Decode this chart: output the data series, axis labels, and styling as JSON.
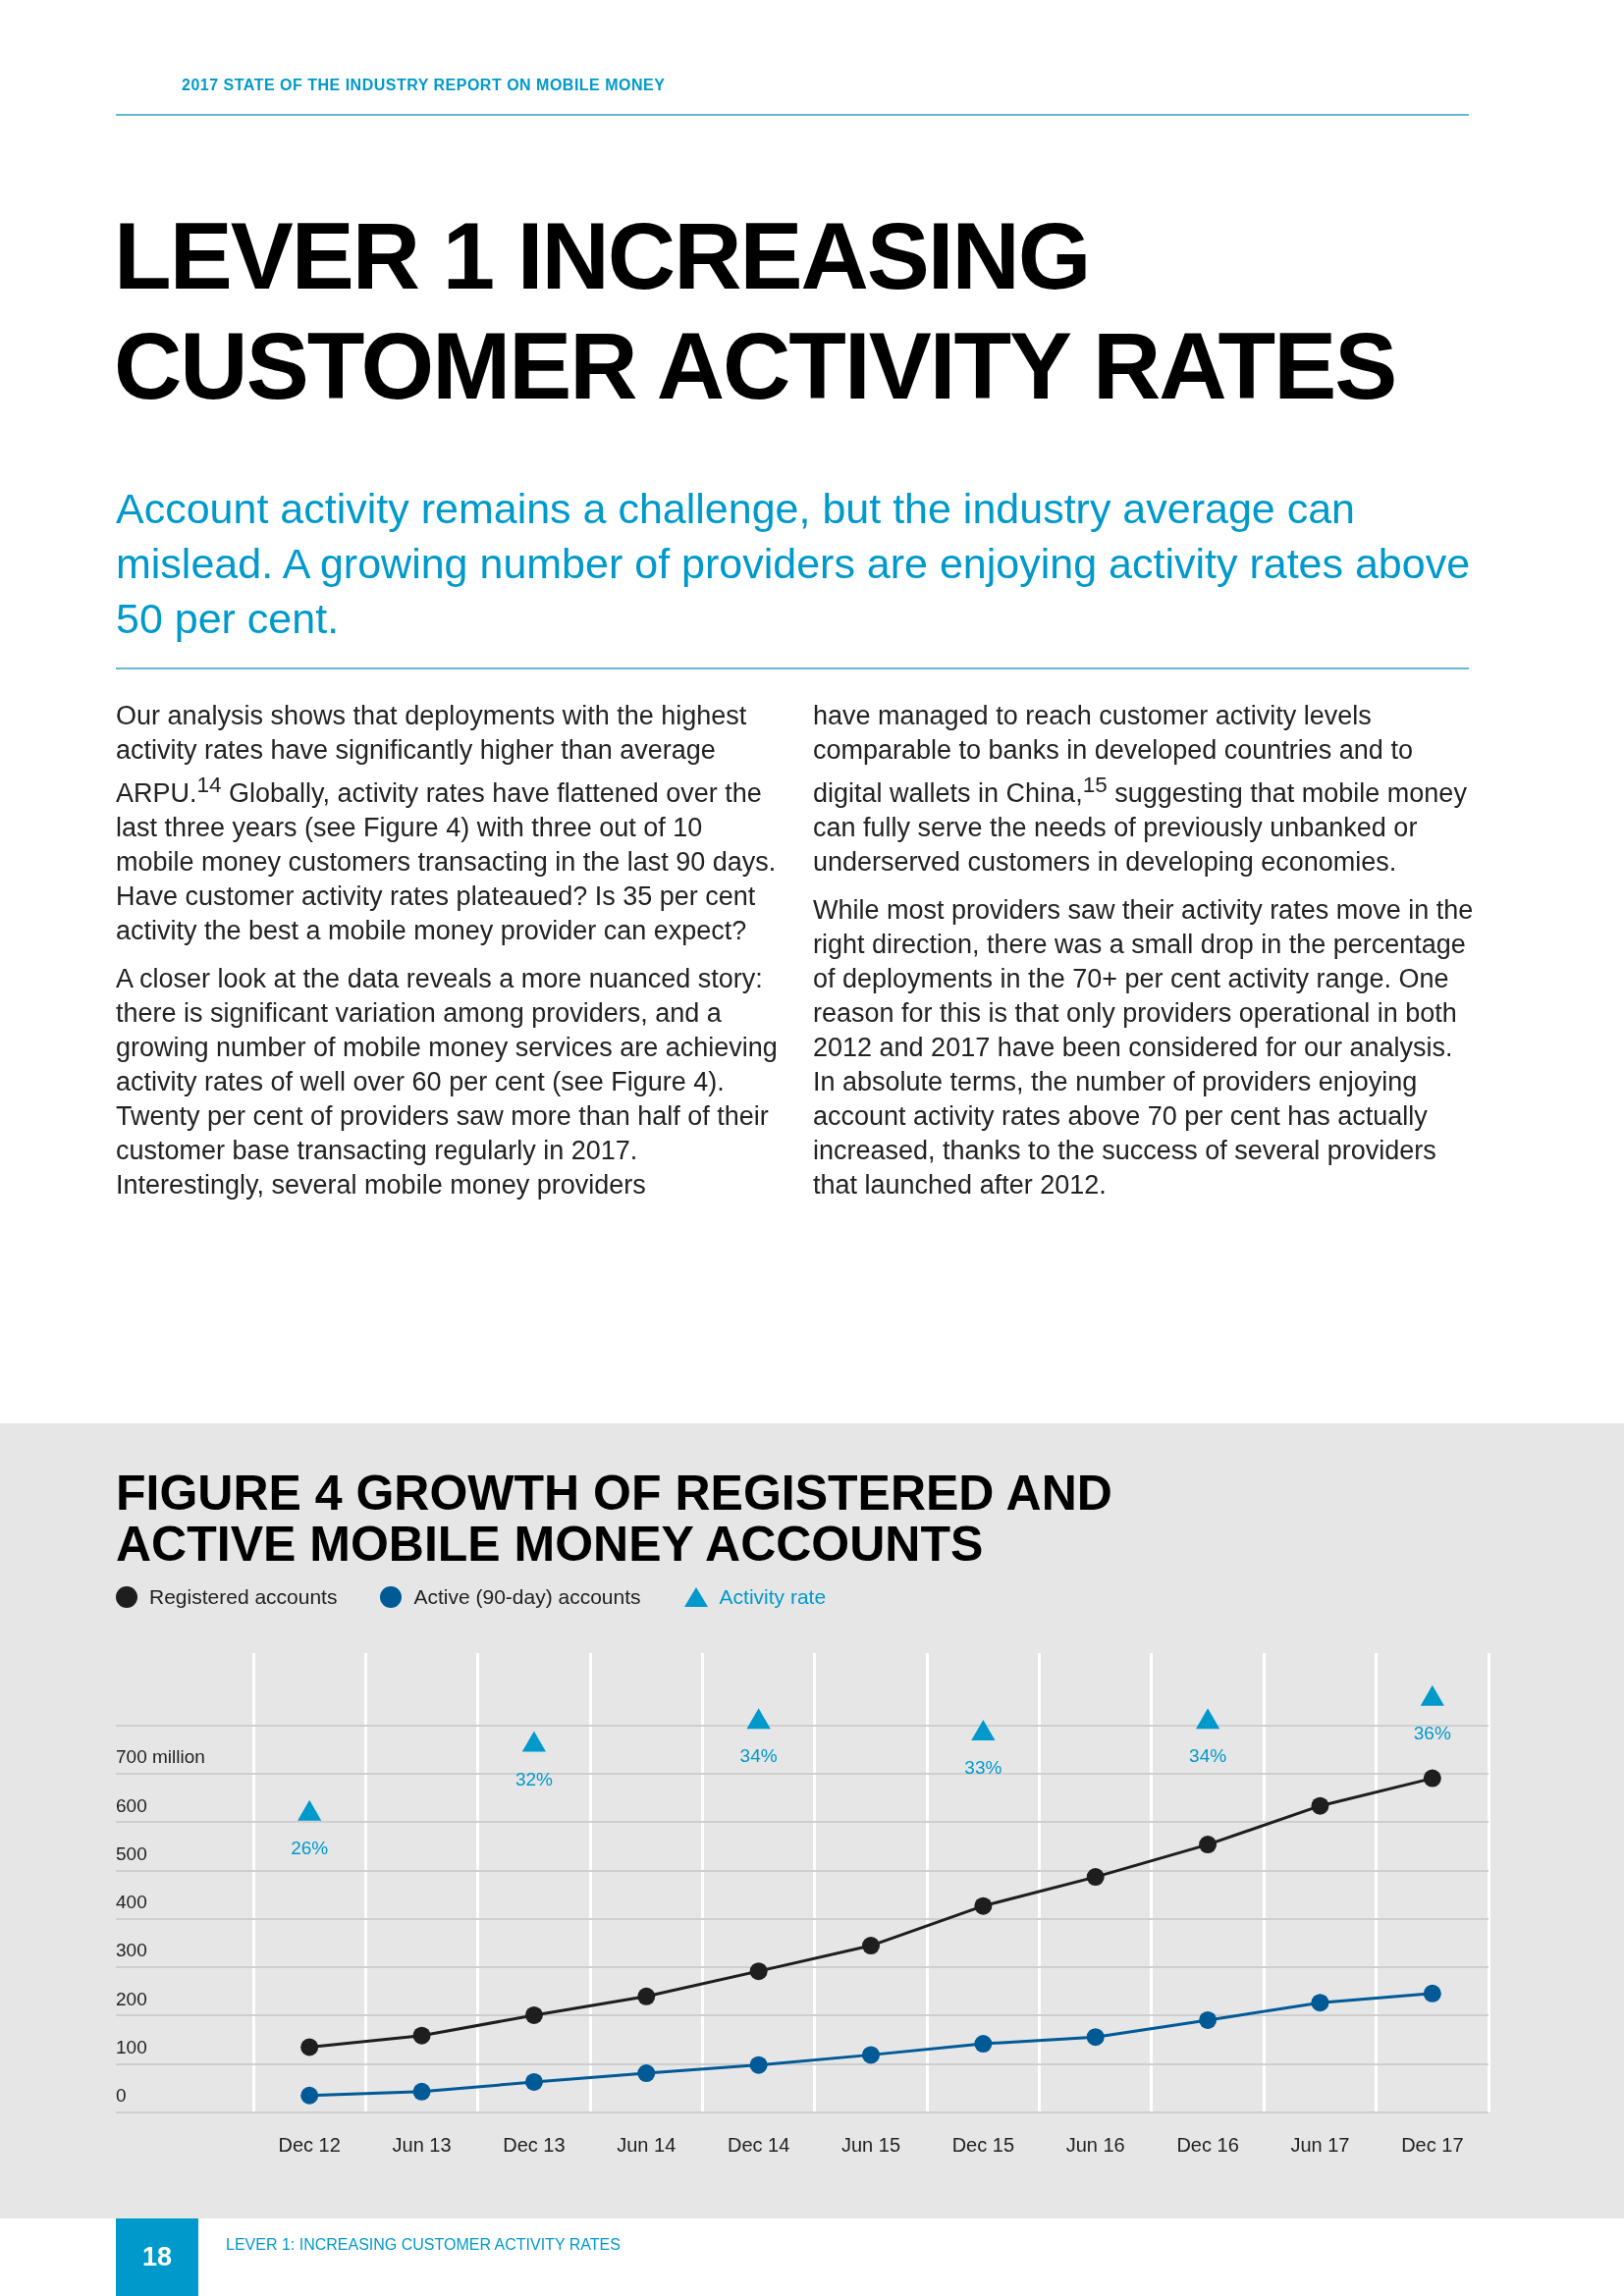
{
  "chart_data": {
    "type": "line",
    "title": "FIGURE 4 GROWTH OF REGISTERED AND ACTIVE MOBILE MONEY ACCOUNTS",
    "categories": [
      "Dec 12",
      "Jun 13",
      "Dec 13",
      "Jun 14",
      "Dec 14",
      "Jun 15",
      "Dec 15",
      "Jun 16",
      "Dec 16",
      "Jun 17",
      "Dec 17"
    ],
    "series": [
      {
        "name": "Registered accounts",
        "color": "#1e1e1e",
        "values": [
          135,
          159,
          201,
          240,
          292,
          345,
          427,
          487,
          554,
          634,
          691
        ]
      },
      {
        "name": "Active (90-day) accounts",
        "color": "#005a96",
        "values": [
          35,
          43,
          63,
          81,
          98,
          119,
          142,
          156,
          191,
          227,
          246
        ]
      },
      {
        "name": "Activity rate",
        "type": "scatter",
        "marker": "triangle",
        "axis": "y2",
        "color": "#0099cc",
        "x": [
          "Dec 12",
          "Dec 13",
          "Dec 14",
          "Dec 15",
          "Dec 16",
          "Dec 17"
        ],
        "values": [
          26,
          32,
          34,
          33,
          34,
          36
        ],
        "value_labels": [
          "26%",
          "32%",
          "34%",
          "33%",
          "34%",
          "36%"
        ]
      }
    ],
    "ylim": [
      0,
      950
    ],
    "yticks": [
      0,
      100,
      200,
      300,
      400,
      500,
      600,
      {
        "value": 700,
        "label": "700 million"
      },
      {
        "value": 800,
        "label": null
      }
    ],
    "grid": true,
    "legend": "top left",
    "marker": "circle",
    "line_style": "solid",
    "annotations": [
      "2017 STATE OF THE INDUSTRY REPORT ON MOBILE MONEY",
      "LEVER 1 INCREASING CUSTOMER ACTIVITY RATES",
      "Account activity remains a challenge, but the industry average can mislead. A growing number of providers are enjoying activity rates above 50 per cent.",
      "Our analysis shows that deployments with the highest activity rates have significantly higher than average ARPU.$^{14}$ Globally, activity rates have flattened over the last three years (see Figure 4) with three out of 10 mobile money customers transacting in the last 90 days. Have customer activity rates plateaued? Is 35 per cent activity the best a mobile money provider can expect?",
      "A closer look at the data reveals a more nuanced story: there is significant variation among providers, and a growing number of mobile money services are achieving activity rates of well over 60 per cent (see Figure 4). Twenty per cent of providers saw more than half of their customer base transacting regularly in 2017. Interestingly, several mobile money providers",
      "have managed to reach customer activity levels comparable to banks in developed countries and to digital wallets in China,$^{15}$ suggesting that mobile money can fully serve the needs of previously unbanked or underserved customers in developing economies.",
      "While most providers saw their activity rates move in the right direction, there was a small drop in the percentage of deployments in the 70+ per cent activity range. One reason for this is that only providers operational in both 2012 and 2017 have been considered for our analysis. In absolute terms, the number of providers enjoying account activity rates above 70 per cent has actually increased, thanks to the success of several providers that launched after 2012.",
      "18",
      "LEVER 1: INCREASING CUSTOMER ACTIVITY RATES"
    ]
  }
}
